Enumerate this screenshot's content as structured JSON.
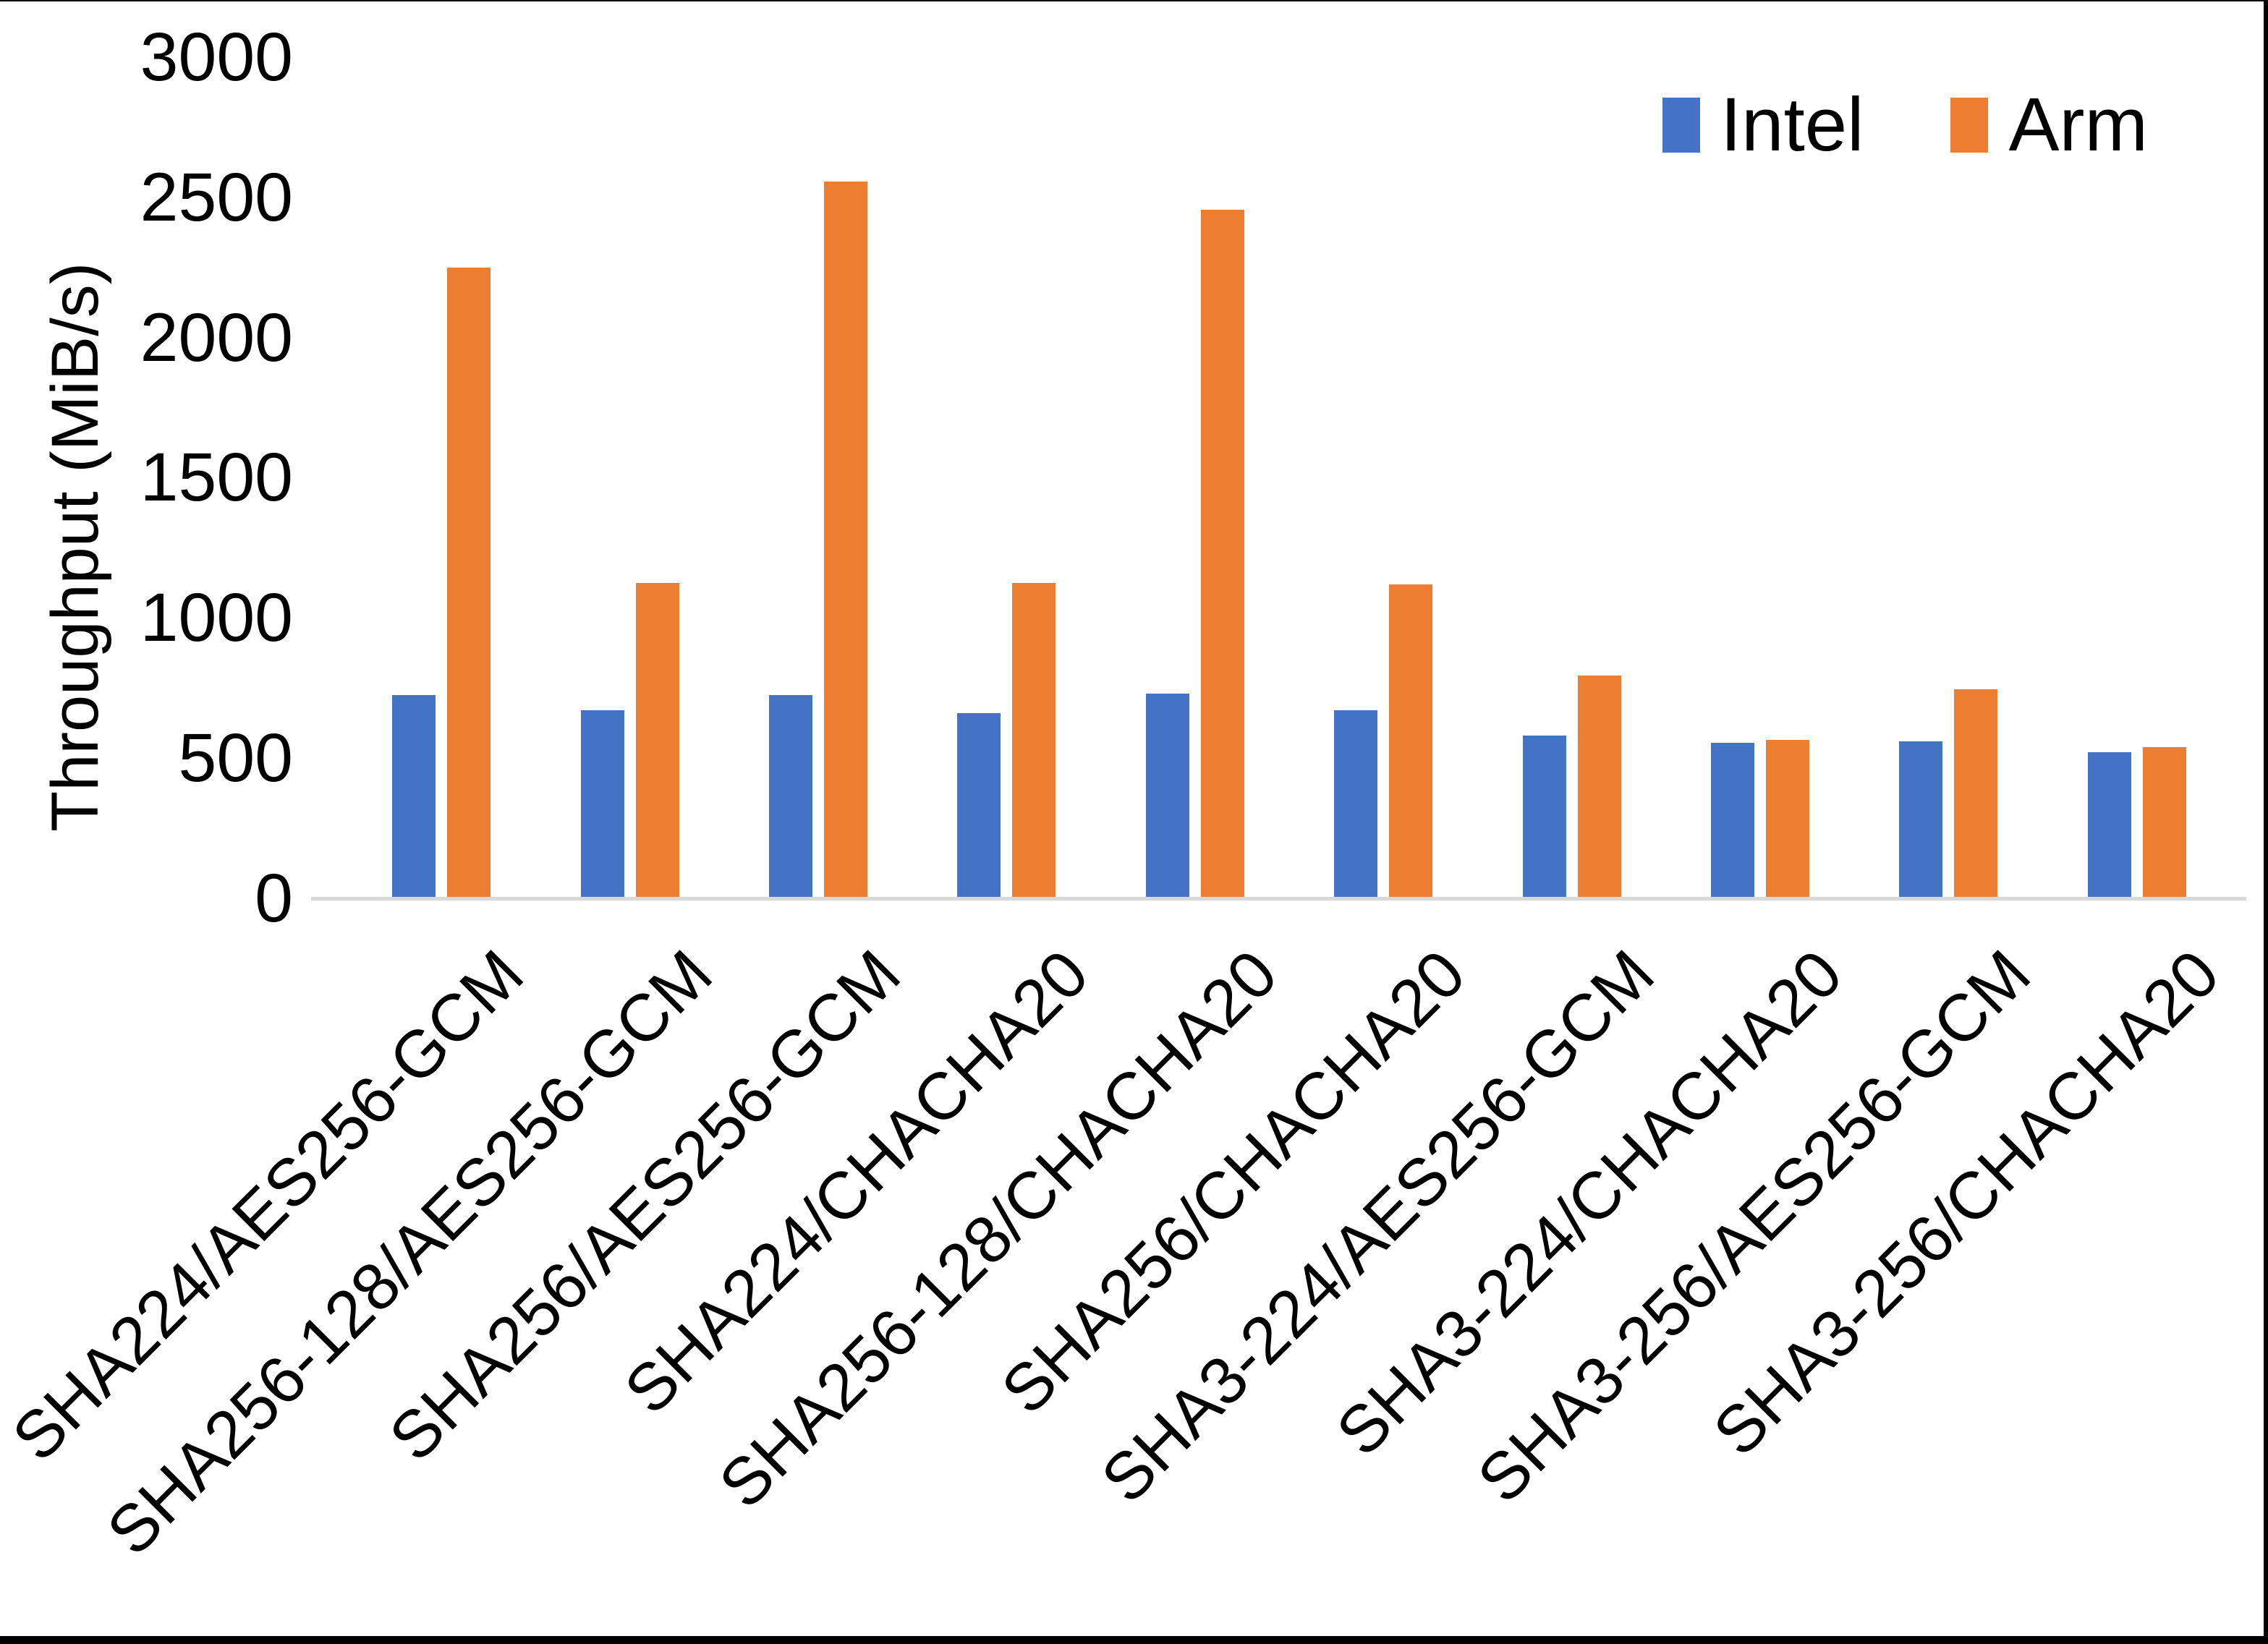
{
  "chart_data": {
    "type": "bar",
    "title": "",
    "xlabel": "",
    "ylabel": "Throughput (MiB/s)",
    "ylim": [
      0,
      3000
    ],
    "yticks": [
      0,
      500,
      1000,
      1500,
      2000,
      2500,
      3000
    ],
    "grid": false,
    "legend_position": "top-right",
    "categories": [
      "SHA224/AES256-GCM",
      "SHA256-128/AES256-GCM",
      "SHA256/AES256-GCM",
      "SHA224/CHACHA20",
      "SHA256-128/CHACHA20",
      "SHA256/CHACHA20",
      "SHA3-224/AES256-GCM",
      "SHA3-224/CHACHA20",
      "SHA3-256/AES256-GCM",
      "SHA3-256/CHACHA20"
    ],
    "series": [
      {
        "name": "Intel",
        "color": "#4472C4",
        "values": [
          725,
          670,
          725,
          660,
          730,
          670,
          580,
          555,
          560,
          520
        ]
      },
      {
        "name": "Arm",
        "color": "#ED7D31",
        "values": [
          2250,
          1125,
          2555,
          1125,
          2455,
          1120,
          795,
          565,
          745,
          540
        ]
      }
    ],
    "axis_line_color": "#d9d9d9",
    "text_color": "#000000"
  },
  "legend": {
    "items": [
      {
        "label": "Intel",
        "color": "#4472C4"
      },
      {
        "label": "Arm",
        "color": "#ED7D31"
      }
    ]
  }
}
